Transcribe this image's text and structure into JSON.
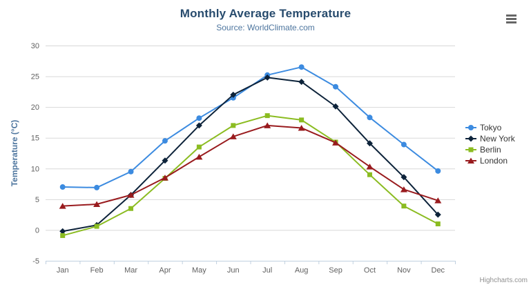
{
  "header": {
    "title": "Monthly Average Temperature",
    "subtitle": "Source: WorldClimate.com"
  },
  "credits": {
    "label": "Highcharts.com"
  },
  "icons": {
    "context_menu": "hamburger-icon"
  },
  "chart_data": {
    "type": "line",
    "title": "Monthly Average Temperature",
    "subtitle": "Source: WorldClimate.com",
    "xlabel": "",
    "ylabel": "Temperature (°C)",
    "ylim": [
      -5,
      30
    ],
    "yticks": [
      -5,
      0,
      5,
      10,
      15,
      20,
      25,
      30
    ],
    "grid": true,
    "legend_position": "right",
    "categories": [
      "Jan",
      "Feb",
      "Mar",
      "Apr",
      "May",
      "Jun",
      "Jul",
      "Aug",
      "Sep",
      "Oct",
      "Nov",
      "Dec"
    ],
    "series": [
      {
        "name": "Tokyo",
        "color": "#3c8be0",
        "marker": "circle",
        "values": [
          7.0,
          6.9,
          9.5,
          14.5,
          18.2,
          21.5,
          25.2,
          26.5,
          23.3,
          18.3,
          13.9,
          9.6
        ]
      },
      {
        "name": "New York",
        "color": "#0d233a",
        "marker": "diamond",
        "values": [
          -0.2,
          0.8,
          5.7,
          11.3,
          17.0,
          22.0,
          24.8,
          24.1,
          20.1,
          14.1,
          8.6,
          2.5
        ]
      },
      {
        "name": "Berlin",
        "color": "#8bbc21",
        "marker": "square",
        "values": [
          -0.9,
          0.6,
          3.5,
          8.4,
          13.5,
          17.0,
          18.6,
          17.9,
          14.3,
          9.0,
          3.9,
          1.0
        ]
      },
      {
        "name": "London",
        "color": "#991b1e",
        "marker": "triangle",
        "values": [
          3.9,
          4.2,
          5.7,
          8.5,
          11.9,
          15.2,
          17.0,
          16.6,
          14.2,
          10.3,
          6.6,
          4.8
        ]
      }
    ],
    "axis_colors": {
      "gridline": "#d8d8d8",
      "axis_line": "#c0d0e0",
      "tick_label": "#606060"
    }
  }
}
